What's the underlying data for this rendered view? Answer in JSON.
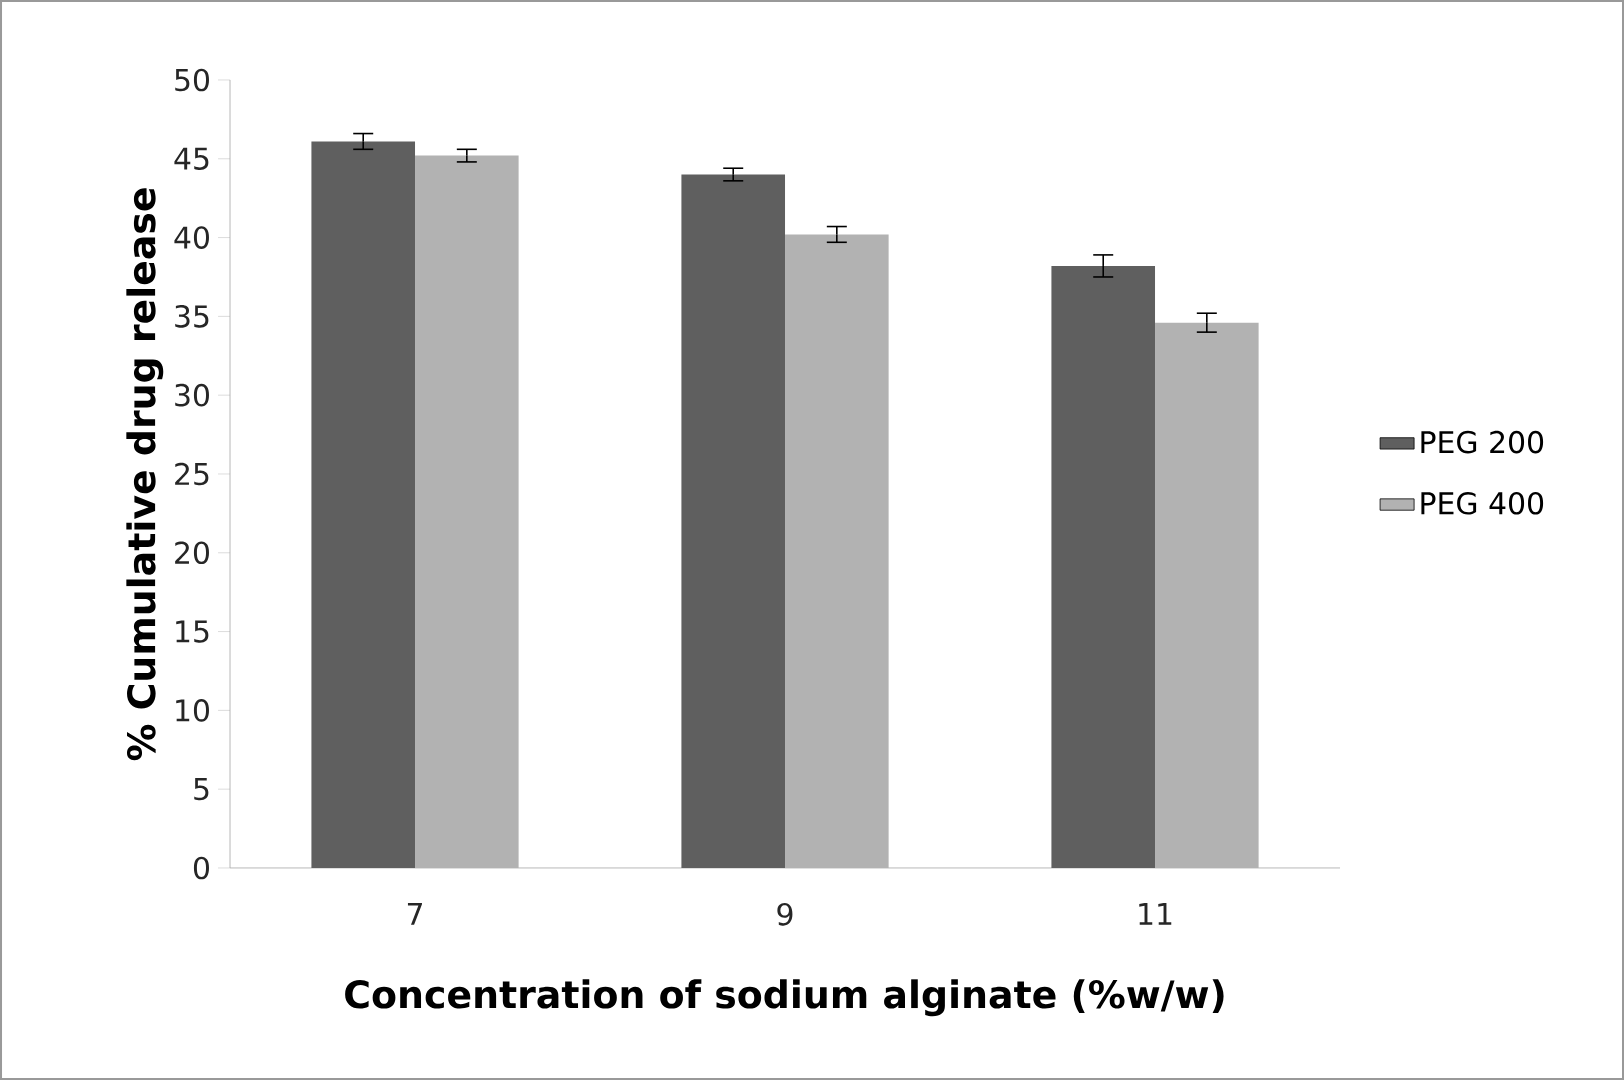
{
  "chart_data": {
    "type": "bar",
    "xlabel": "Concentration of sodium alginate (%w/w)",
    "ylabel": "% Cumulative drug release",
    "categories": [
      "7",
      "9",
      "11"
    ],
    "series": [
      {
        "name": "PEG 200",
        "color": "#5f5f5f",
        "values": [
          46.1,
          44.0,
          38.2
        ],
        "errors": [
          0.5,
          0.4,
          0.7
        ]
      },
      {
        "name": "PEG 400",
        "color": "#b2b2b2",
        "values": [
          45.2,
          40.2,
          34.6
        ],
        "errors": [
          0.4,
          0.5,
          0.6
        ]
      }
    ],
    "ylim": [
      0,
      50
    ],
    "yticks": [
      0,
      5,
      10,
      15,
      20,
      25,
      30,
      35,
      40,
      45,
      50
    ],
    "legend": "right"
  }
}
